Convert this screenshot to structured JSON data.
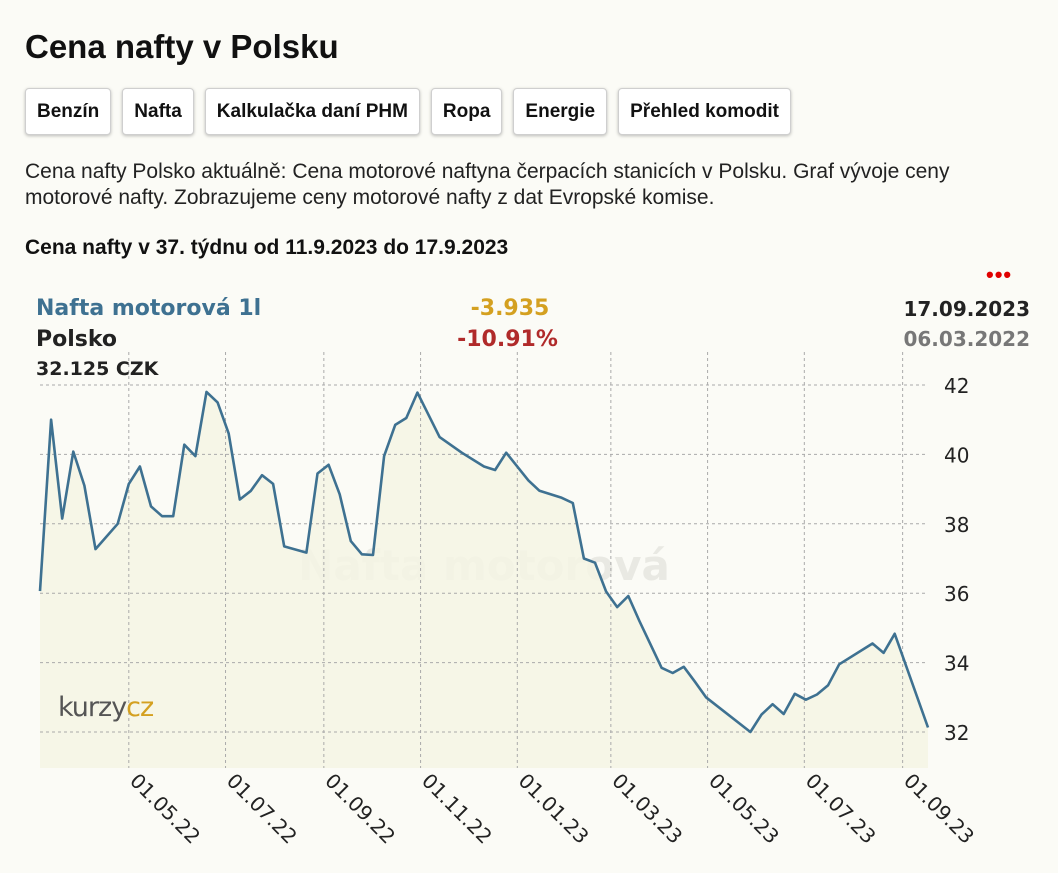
{
  "page": {
    "title": "Cena nafty v Polsku",
    "description": "Cena nafty Polsko aktuálně: Cena motorové naftyna čerpacích stanicích v Polsku. Graf vývoje ceny motorové nafty. Zobrazujeme ceny motorové nafty z dat Evropské komise.",
    "week_title": "Cena nafty v 37. týdnu od 11.9.2023 do 17.9.2023"
  },
  "tabs": [
    {
      "label": "Benzín"
    },
    {
      "label": "Nafta"
    },
    {
      "label": "Kalkulačka daní PHM"
    },
    {
      "label": "Ropa"
    },
    {
      "label": "Energie"
    },
    {
      "label": "Přehled komodit"
    }
  ],
  "menu": {
    "dots": "•••",
    "color": "#e00000"
  },
  "chart_header": {
    "series_name": "Nafta motorová 1l",
    "region": "Polsko",
    "last_value": "32.125 CZK",
    "abs_change": "-3.935",
    "pct_change": "-10.91%",
    "date_end": "17.09.2023",
    "date_start": "06.03.2022"
  },
  "watermark": {
    "text": "Nafta motorová",
    "logo_left": "kurzy",
    "logo_right": "cz"
  },
  "colors": {
    "line": "#3e7191",
    "area": "#f4f4e4",
    "abs_change": "#d4a020",
    "pct_change": "#b02a2a",
    "logo_right": "#d4a020"
  },
  "chart_data": {
    "type": "area",
    "xlabel": "",
    "ylabel": "",
    "ylim": [
      31,
      42.3
    ],
    "yticks": [
      32,
      34,
      36,
      38,
      40,
      42
    ],
    "xlim": [
      "2022-03-06",
      "2023-09-17"
    ],
    "xticks": [
      {
        "date": "2022-05-01",
        "label": "01.05.22"
      },
      {
        "date": "2022-07-01",
        "label": "01.07.22"
      },
      {
        "date": "2022-09-01",
        "label": "01.09.22"
      },
      {
        "date": "2022-11-01",
        "label": "01.11.22"
      },
      {
        "date": "2023-01-01",
        "label": "01.01.23"
      },
      {
        "date": "2023-03-01",
        "label": "01.03.23"
      },
      {
        "date": "2023-05-01",
        "label": "01.05.23"
      },
      {
        "date": "2023-07-01",
        "label": "01.07.23"
      },
      {
        "date": "2023-09-01",
        "label": "01.09.23"
      }
    ],
    "grid": true,
    "series": [
      {
        "name": "Nafta motorová 1l",
        "points": [
          [
            "2022-03-06",
            36.06
          ],
          [
            "2022-03-13",
            41.0
          ],
          [
            "2022-03-20",
            38.15
          ],
          [
            "2022-03-27",
            40.08
          ],
          [
            "2022-04-03",
            39.1
          ],
          [
            "2022-04-10",
            37.27
          ],
          [
            "2022-04-24",
            38.0
          ],
          [
            "2022-05-01",
            39.15
          ],
          [
            "2022-05-08",
            39.65
          ],
          [
            "2022-05-15",
            38.5
          ],
          [
            "2022-05-22",
            38.22
          ],
          [
            "2022-05-29",
            38.22
          ],
          [
            "2022-06-05",
            40.28
          ],
          [
            "2022-06-12",
            39.95
          ],
          [
            "2022-06-19",
            41.8
          ],
          [
            "2022-06-26",
            41.5
          ],
          [
            "2022-07-03",
            40.6
          ],
          [
            "2022-07-10",
            38.7
          ],
          [
            "2022-07-17",
            38.95
          ],
          [
            "2022-07-24",
            39.4
          ],
          [
            "2022-07-31",
            39.15
          ],
          [
            "2022-08-07",
            37.35
          ],
          [
            "2022-08-21",
            37.17
          ],
          [
            "2022-08-28",
            39.45
          ],
          [
            "2022-09-04",
            39.7
          ],
          [
            "2022-09-11",
            38.85
          ],
          [
            "2022-09-18",
            37.5
          ],
          [
            "2022-09-25",
            37.12
          ],
          [
            "2022-10-02",
            37.1
          ],
          [
            "2022-10-09",
            39.95
          ],
          [
            "2022-10-16",
            40.85
          ],
          [
            "2022-10-23",
            41.05
          ],
          [
            "2022-10-30",
            41.78
          ],
          [
            "2022-11-13",
            40.5
          ],
          [
            "2022-11-27",
            40.05
          ],
          [
            "2022-12-11",
            39.65
          ],
          [
            "2022-12-18",
            39.55
          ],
          [
            "2022-12-25",
            40.05
          ],
          [
            "2023-01-08",
            39.25
          ],
          [
            "2023-01-15",
            38.95
          ],
          [
            "2023-01-29",
            38.75
          ],
          [
            "2023-02-05",
            38.6
          ],
          [
            "2023-02-12",
            37.0
          ],
          [
            "2023-02-19",
            36.88
          ],
          [
            "2023-02-26",
            36.05
          ],
          [
            "2023-03-05",
            35.6
          ],
          [
            "2023-03-12",
            35.92
          ],
          [
            "2023-03-19",
            35.2
          ],
          [
            "2023-04-02",
            33.85
          ],
          [
            "2023-04-09",
            33.7
          ],
          [
            "2023-04-16",
            33.88
          ],
          [
            "2023-04-23",
            33.45
          ],
          [
            "2023-04-30",
            33.0
          ],
          [
            "2023-05-28",
            32.0
          ],
          [
            "2023-06-04",
            32.5
          ],
          [
            "2023-06-11",
            32.8
          ],
          [
            "2023-06-18",
            32.52
          ],
          [
            "2023-06-25",
            33.1
          ],
          [
            "2023-07-02",
            32.93
          ],
          [
            "2023-07-09",
            33.08
          ],
          [
            "2023-07-16",
            33.35
          ],
          [
            "2023-07-23",
            33.95
          ],
          [
            "2023-08-13",
            34.55
          ],
          [
            "2023-08-20",
            34.28
          ],
          [
            "2023-08-27",
            34.83
          ],
          [
            "2023-09-17",
            32.13
          ]
        ]
      }
    ]
  }
}
